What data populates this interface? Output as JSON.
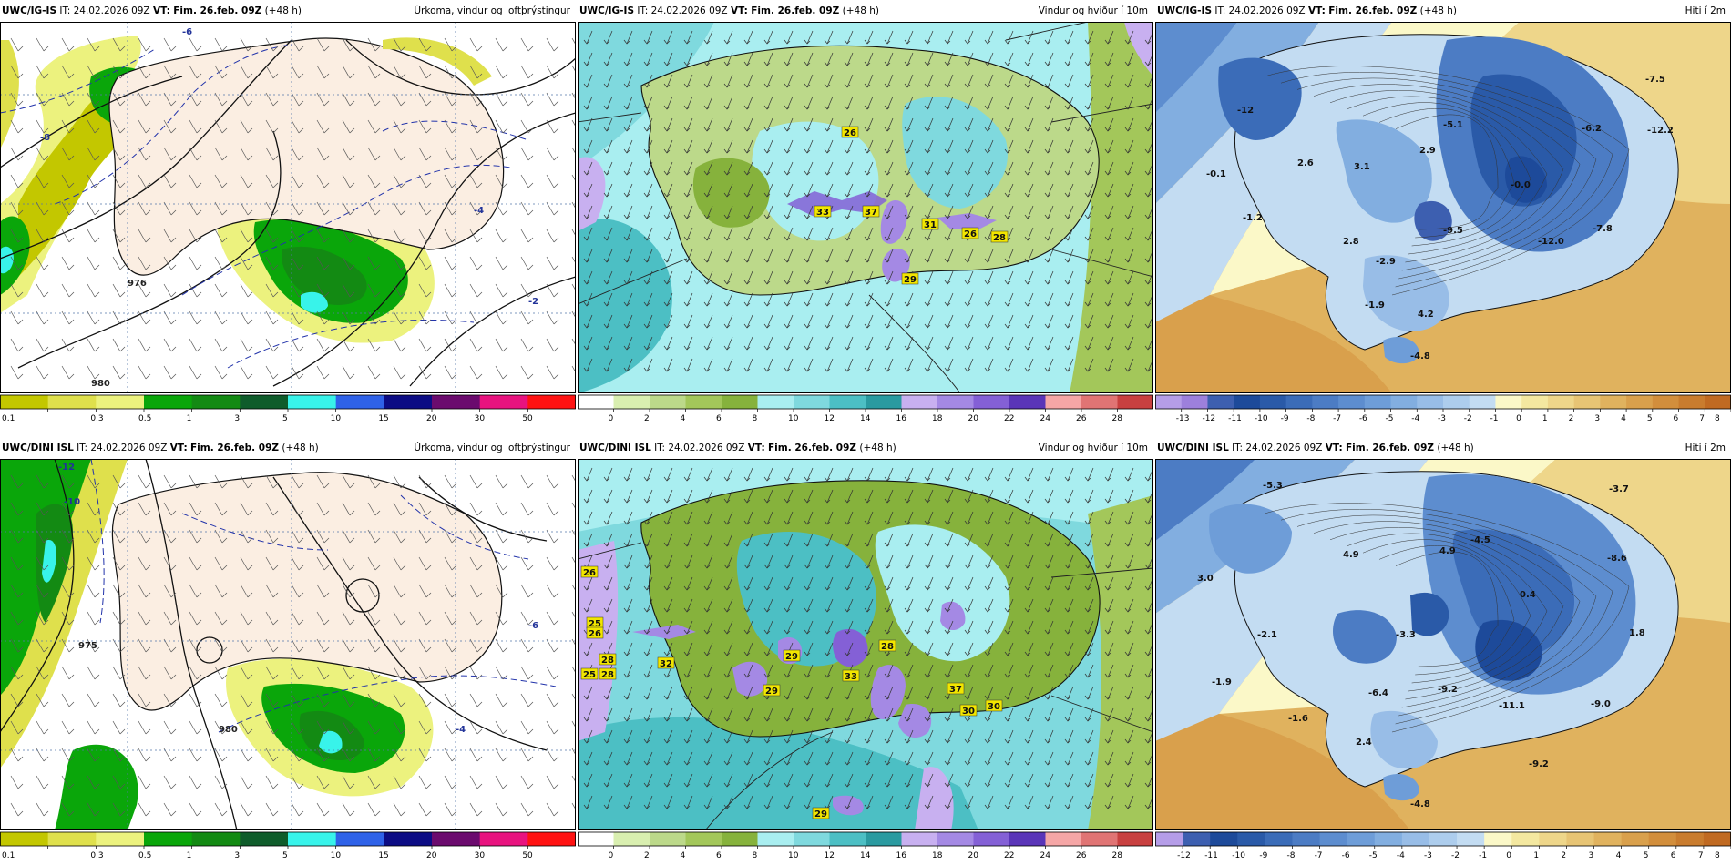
{
  "panels": [
    {
      "model": "UWC/IG-IS",
      "it_label": "IT:",
      "it": "24.02.2026 09Z",
      "vt_label": "VT:",
      "vt": "Fim. 26.feb. 09Z",
      "lead": "(+48 h)",
      "title": "Úrkoma, vindur og loftþrýstingur",
      "colorbar": {
        "ticks": [
          "0.1",
          "0.3",
          "0.5",
          "1",
          "3",
          "5",
          "10",
          "15",
          "20",
          "30",
          "50"
        ],
        "colors": [
          "#c3c700",
          "#dfe04c",
          "#ecf27e",
          "#0aa60a",
          "#138a13",
          "#0f5c2b",
          "#38f3ea",
          "#2f62e8",
          "#0c0c84",
          "#6b0b6e",
          "#e8137f",
          "#ff1212"
        ]
      },
      "labels": [
        {
          "t": "-6"
        },
        {
          "t": "-8"
        },
        {
          "t": "976"
        },
        {
          "t": "980"
        },
        {
          "t": "-4"
        },
        {
          "t": "-2"
        }
      ]
    },
    {
      "model": "UWC/IG-IS",
      "it_label": "IT:",
      "it": "24.02.2026 09Z",
      "vt_label": "VT:",
      "vt": "Fim. 26.feb. 09Z",
      "lead": "(+48 h)",
      "title": "Vindur og hviður í 10m",
      "colorbar": {
        "ticks": [
          "0",
          "2",
          "4",
          "6",
          "8",
          "10",
          "12",
          "14",
          "16",
          "18",
          "20",
          "22",
          "24",
          "26",
          "28"
        ],
        "colors": [
          "#ffffff",
          "#d9efb0",
          "#bcd98a",
          "#a3c75a",
          "#86b23c",
          "#a9eef0",
          "#7fd9de",
          "#4cbfc4",
          "#2a9aa0",
          "#c8b0f0",
          "#a489e4",
          "#8460d6",
          "#5a35b8",
          "#f5a6a6",
          "#e07474",
          "#c84040"
        ]
      },
      "labels": [
        {
          "t": "26"
        },
        {
          "t": "33"
        },
        {
          "t": "37"
        },
        {
          "t": "31"
        },
        {
          "t": "26"
        },
        {
          "t": "28"
        },
        {
          "t": "29"
        }
      ]
    },
    {
      "model": "UWC/IG-IS",
      "it_label": "IT:",
      "it": "24.02.2026 09Z",
      "vt_label": "VT:",
      "vt": "Fim. 26.feb. 09Z",
      "lead": "(+48 h)",
      "title": "Hiti í 2m",
      "colorbar": {
        "ticks": [
          "-13",
          "-12",
          "-11",
          "-10",
          "-9",
          "-8",
          "-7",
          "-6",
          "-5",
          "-4",
          "-3",
          "-2",
          "-1",
          "0",
          "1",
          "2",
          "3",
          "4",
          "5",
          "6",
          "7",
          "8"
        ],
        "colors": [
          "#b59de8",
          "#9d80dc",
          "#3d5fb0",
          "#1d4a9a",
          "#2a5aa8",
          "#3b6cb8",
          "#4c7cc4",
          "#5d8dcf",
          "#6e9dd8",
          "#82aee0",
          "#98bde7",
          "#adcded",
          "#c3dcf2",
          "#fbf8c8",
          "#f4e8a0",
          "#eed68a",
          "#e7c474",
          "#e0b25e",
          "#d9a04c",
          "#d28e3c",
          "#c97c2e",
          "#c06a22"
        ]
      },
      "labels": [
        {
          "t": "-12"
        },
        {
          "t": "-7.5"
        },
        {
          "t": "-5.1"
        },
        {
          "t": "-6.2"
        },
        {
          "t": "-12.2"
        },
        {
          "t": "-0.1"
        },
        {
          "t": "2.6"
        },
        {
          "t": "3.1"
        },
        {
          "t": "2.9"
        },
        {
          "t": "-0.0"
        },
        {
          "t": "-1.2"
        },
        {
          "t": "2.8"
        },
        {
          "t": "-9.5"
        },
        {
          "t": "-12.0"
        },
        {
          "t": "-7.8"
        },
        {
          "t": "-2.9"
        },
        {
          "t": "-1.9"
        },
        {
          "t": "4.2"
        },
        {
          "t": "-4.8"
        }
      ]
    },
    {
      "model": "UWC/DINI ISL",
      "it_label": "IT:",
      "it": "24.02.2026 09Z",
      "vt_label": "VT:",
      "vt": "Fim. 26.feb. 09Z",
      "lead": "(+48 h)",
      "title": "Úrkoma, vindur og loftþrýstingur",
      "colorbar": {
        "ticks": [
          "0.1",
          "0.3",
          "0.5",
          "1",
          "3",
          "5",
          "10",
          "15",
          "20",
          "30",
          "50"
        ],
        "colors": [
          "#c3c700",
          "#dfe04c",
          "#ecf27e",
          "#0aa60a",
          "#138a13",
          "#0f5c2b",
          "#38f3ea",
          "#2f62e8",
          "#0c0c84",
          "#6b0b6e",
          "#e8137f",
          "#ff1212"
        ]
      },
      "labels": [
        {
          "t": "-12"
        },
        {
          "t": "-10"
        },
        {
          "t": "975"
        },
        {
          "t": "980"
        },
        {
          "t": "-4"
        },
        {
          "t": "-6"
        }
      ]
    },
    {
      "model": "UWC/DINI ISL",
      "it_label": "IT:",
      "it": "24.02.2026 09Z",
      "vt_label": "VT:",
      "vt": "Fim. 26.feb. 09Z",
      "lead": "(+48 h)",
      "title": "Vindur og hviður í 10m",
      "colorbar": {
        "ticks": [
          "0",
          "2",
          "4",
          "6",
          "8",
          "10",
          "12",
          "14",
          "16",
          "18",
          "20",
          "22",
          "24",
          "26",
          "28"
        ],
        "colors": [
          "#ffffff",
          "#d9efb0",
          "#bcd98a",
          "#a3c75a",
          "#86b23c",
          "#a9eef0",
          "#7fd9de",
          "#4cbfc4",
          "#2a9aa0",
          "#c8b0f0",
          "#a489e4",
          "#8460d6",
          "#5a35b8",
          "#f5a6a6",
          "#e07474",
          "#c84040"
        ]
      },
      "labels": [
        {
          "t": "26"
        },
        {
          "t": "25"
        },
        {
          "t": "26"
        },
        {
          "t": "28"
        },
        {
          "t": "25"
        },
        {
          "t": "28"
        },
        {
          "t": "32"
        },
        {
          "t": "29"
        },
        {
          "t": "29"
        },
        {
          "t": "33"
        },
        {
          "t": "28"
        },
        {
          "t": "37"
        },
        {
          "t": "30"
        },
        {
          "t": "30"
        },
        {
          "t": "29"
        }
      ]
    },
    {
      "model": "UWC/DINI ISL",
      "it_label": "IT:",
      "it": "24.02.2026 09Z",
      "vt_label": "VT:",
      "vt": "Fim. 26.feb. 09Z",
      "lead": "(+48 h)",
      "title": "Hiti í 2m",
      "colorbar": {
        "ticks": [
          "-12",
          "-11",
          "-10",
          "-9",
          "-8",
          "-7",
          "-6",
          "-5",
          "-4",
          "-3",
          "-2",
          "-1",
          "0",
          "1",
          "2",
          "3",
          "4",
          "5",
          "6",
          "7",
          "8"
        ],
        "colors": [
          "#b59de8",
          "#3d5fb0",
          "#1d4a9a",
          "#2a5aa8",
          "#3b6cb8",
          "#4c7cc4",
          "#5d8dcf",
          "#6e9dd8",
          "#82aee0",
          "#98bde7",
          "#adcded",
          "#c3dcf2",
          "#fbf8c8",
          "#f4e8a0",
          "#eed68a",
          "#e7c474",
          "#e0b25e",
          "#d9a04c",
          "#d28e3c",
          "#c97c2e",
          "#c06a22"
        ]
      },
      "labels": [
        {
          "t": "-5.3"
        },
        {
          "t": "-3.7"
        },
        {
          "t": "-4.5"
        },
        {
          "t": "4.9"
        },
        {
          "t": "4.9"
        },
        {
          "t": "-8.6"
        },
        {
          "t": "3.0"
        },
        {
          "t": "0.4"
        },
        {
          "t": "-3.3"
        },
        {
          "t": "-2.1"
        },
        {
          "t": "1.8"
        },
        {
          "t": "-1.9"
        },
        {
          "t": "-6.4"
        },
        {
          "t": "-9.2"
        },
        {
          "t": "-11.1"
        },
        {
          "t": "-9.0"
        },
        {
          "t": "-1.6"
        },
        {
          "t": "2.4"
        },
        {
          "t": "-9.2"
        },
        {
          "t": "-4.8"
        }
      ]
    }
  ]
}
